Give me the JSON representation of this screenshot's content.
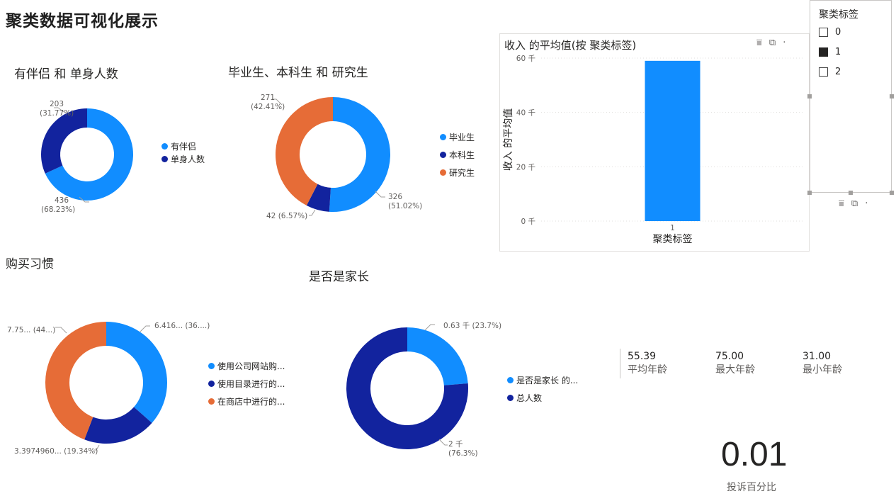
{
  "page": {
    "title": "聚类数据可视化展示"
  },
  "colors": {
    "blue": "#118dff",
    "navy": "#12239e",
    "orange": "#e66c37"
  },
  "donut_partner": {
    "title": "有伴侣 和 单身人数",
    "slices": [
      {
        "name": "有伴侣",
        "value": 436,
        "color": "#118dff",
        "label1": "436",
        "label2": "(68.23%)"
      },
      {
        "name": "单身人数",
        "value": 203,
        "color": "#12239e",
        "label1": "203",
        "label2": "(31.77%)"
      }
    ],
    "legend": [
      "有伴侣",
      "单身人数"
    ]
  },
  "donut_education": {
    "title": "毕业生、本科生 和 研究生",
    "slices": [
      {
        "name": "毕业生",
        "value": 326,
        "color": "#118dff",
        "label1": "326",
        "label2": "(51.02%)"
      },
      {
        "name": "本科生",
        "value": 42,
        "color": "#12239e",
        "label1": "42 (6.57%)",
        "label2": ""
      },
      {
        "name": "研究生",
        "value": 271,
        "color": "#e66c37",
        "label1": "271",
        "label2": "(42.41%)"
      }
    ],
    "legend": [
      "毕业生",
      "本科生",
      "研究生"
    ]
  },
  "donut_shopping": {
    "title": "购买习惯",
    "slices": [
      {
        "name": "使用公司网站购...",
        "value": 36.5,
        "color": "#118dff",
        "label1": "6.416... (36....)",
        "label2": ""
      },
      {
        "name": "使用目录进行的...",
        "value": 19.34,
        "color": "#12239e",
        "label1": "3.3974960... (19.34%)",
        "label2": ""
      },
      {
        "name": "在商店中进行的...",
        "value": 44.16,
        "color": "#e66c37",
        "label1": "7.75... (44...)",
        "label2": ""
      }
    ],
    "legend": [
      "使用公司网站购...",
      "使用目录进行的...",
      "在商店中进行的..."
    ]
  },
  "donut_parent": {
    "title": "是否是家长",
    "slices": [
      {
        "name": "是否是家长 的...",
        "value": 23.7,
        "color": "#118dff",
        "label1": "0.63 千 (23.7%)",
        "label2": ""
      },
      {
        "name": "总人数",
        "value": 76.3,
        "color": "#12239e",
        "label1": "2 千",
        "label2": "(76.3%)"
      }
    ],
    "legend": [
      "是否是家长 的...",
      "总人数"
    ]
  },
  "chart_data": {
    "type": "bar",
    "title": "收入 的平均值(按 聚类标签)",
    "xlabel": "聚类标签",
    "ylabel": "收入 的平均值",
    "categories": [
      "1"
    ],
    "values": [
      59
    ],
    "yticks": [
      "0 千",
      "20 千",
      "40 千",
      "60 千"
    ],
    "ylim": [
      0,
      60
    ],
    "color": "#118dff",
    "grid": true
  },
  "slicer": {
    "title": "聚类标签",
    "items": [
      {
        "label": "0",
        "checked": false
      },
      {
        "label": "1",
        "checked": true
      },
      {
        "label": "2",
        "checked": false
      }
    ]
  },
  "kpis": [
    {
      "value": "55.39",
      "label": "平均年龄"
    },
    {
      "value": "75.00",
      "label": "最大年龄"
    },
    {
      "value": "31.00",
      "label": "最小年龄"
    }
  ],
  "card": {
    "value": "0.01",
    "label": "投诉百分比"
  },
  "icons": {
    "filter": "filter-icon",
    "focus": "focus-mode-icon",
    "more": "more-options-icon"
  }
}
